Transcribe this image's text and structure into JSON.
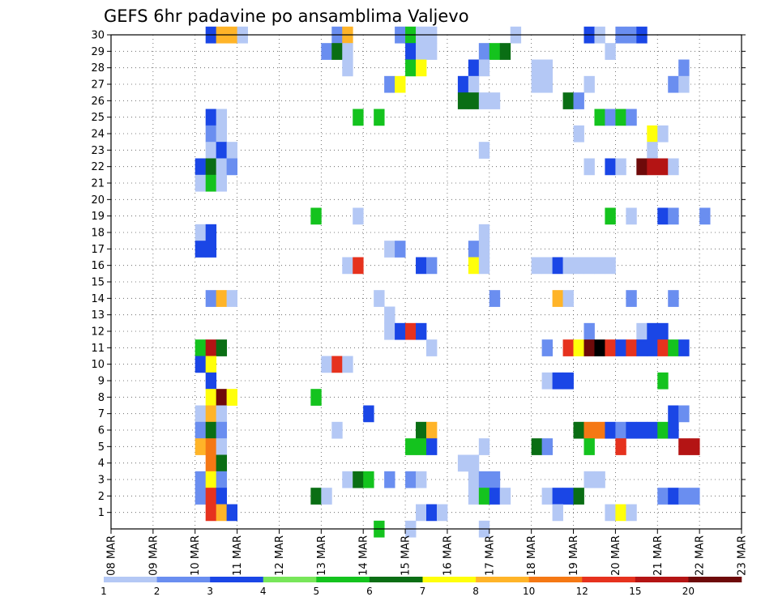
{
  "chart_data": {
    "type": "heatmap",
    "title": "GEFS 6hr padavine po ansamblima Valjevo",
    "xlabel": "",
    "ylabel": "",
    "grid": true,
    "ylim": [
      0,
      30
    ],
    "y_ticks": [
      "1",
      "2",
      "3",
      "4",
      "5",
      "6",
      "7",
      "8",
      "9",
      "10",
      "11",
      "12",
      "13",
      "14",
      "15",
      "16",
      "17",
      "18",
      "19",
      "20",
      "21",
      "22",
      "23",
      "24",
      "25",
      "26",
      "27",
      "28",
      "29",
      "30"
    ],
    "x_ticks": [
      "08 MAR",
      "09 MAR",
      "10 MAR",
      "11 MAR",
      "12 MAR",
      "13 MAR",
      "14 MAR",
      "15 MAR",
      "16 MAR",
      "17 MAR",
      "18 MAR",
      "19 MAR",
      "20 MAR",
      "21 MAR",
      "22 MAR",
      "23 MAR"
    ],
    "x_slots_per_day": 4,
    "x_slot_count": 60,
    "colorbar": {
      "labels": [
        "1",
        "2",
        "3",
        "4",
        "5",
        "6",
        "7",
        "8",
        "10",
        "12",
        "15",
        "20"
      ],
      "colors": [
        "#b4c8f5",
        "#6a8ef0",
        "#1a46e6",
        "#78e65a",
        "#14c31e",
        "#0a6e14",
        "#ffff0a",
        "#ffb428",
        "#f57814",
        "#e6321e",
        "#b41414",
        "#6e0a0a"
      ]
    },
    "cells": [
      [
        1,
        30,
        3
      ],
      [
        2,
        30,
        8
      ],
      [
        3,
        30,
        8
      ],
      [
        4,
        30,
        1
      ],
      [
        13,
        30,
        2
      ],
      [
        14,
        30,
        8
      ],
      [
        19,
        30,
        2
      ],
      [
        20,
        30,
        5
      ],
      [
        21,
        30,
        1
      ],
      [
        22,
        30,
        1
      ],
      [
        30,
        30,
        1
      ],
      [
        37,
        30,
        3
      ],
      [
        38,
        30,
        1
      ],
      [
        40,
        30,
        2
      ],
      [
        41,
        30,
        2
      ],
      [
        42,
        30,
        3
      ],
      [
        12,
        29,
        2
      ],
      [
        13,
        29,
        6
      ],
      [
        14,
        29,
        1
      ],
      [
        20,
        29,
        3
      ],
      [
        21,
        29,
        1
      ],
      [
        22,
        29,
        1
      ],
      [
        27,
        29,
        2
      ],
      [
        28,
        29,
        5
      ],
      [
        29,
        29,
        6
      ],
      [
        39,
        29,
        1
      ],
      [
        14,
        28,
        1
      ],
      [
        20,
        28,
        5
      ],
      [
        21,
        28,
        7
      ],
      [
        26,
        28,
        3
      ],
      [
        27,
        28,
        1
      ],
      [
        32,
        28,
        1
      ],
      [
        33,
        28,
        1
      ],
      [
        46,
        28,
        2
      ],
      [
        18,
        27,
        2
      ],
      [
        19,
        27,
        7
      ],
      [
        25,
        27,
        3
      ],
      [
        26,
        27,
        1
      ],
      [
        32,
        27,
        1
      ],
      [
        33,
        27,
        1
      ],
      [
        37,
        27,
        1
      ],
      [
        45,
        27,
        2
      ],
      [
        46,
        27,
        1
      ],
      [
        25,
        26,
        6
      ],
      [
        26,
        26,
        6
      ],
      [
        27,
        26,
        1
      ],
      [
        28,
        26,
        1
      ],
      [
        35,
        26,
        6
      ],
      [
        36,
        26,
        2
      ],
      [
        1,
        25,
        3
      ],
      [
        2,
        25,
        1
      ],
      [
        15,
        25,
        5
      ],
      [
        17,
        25,
        5
      ],
      [
        38,
        25,
        5
      ],
      [
        39,
        25,
        2
      ],
      [
        40,
        25,
        5
      ],
      [
        41,
        25,
        2
      ],
      [
        1,
        24,
        2
      ],
      [
        2,
        24,
        1
      ],
      [
        36,
        24,
        1
      ],
      [
        43,
        24,
        7
      ],
      [
        44,
        24,
        1
      ],
      [
        1,
        23,
        1
      ],
      [
        2,
        23,
        3
      ],
      [
        3,
        23,
        1
      ],
      [
        27,
        23,
        1
      ],
      [
        43,
        23,
        1
      ],
      [
        0,
        22,
        3
      ],
      [
        1,
        22,
        6
      ],
      [
        2,
        22,
        1
      ],
      [
        3,
        22,
        2
      ],
      [
        37,
        22,
        1
      ],
      [
        39,
        22,
        3
      ],
      [
        40,
        22,
        1
      ],
      [
        42,
        22,
        12
      ],
      [
        43,
        22,
        11
      ],
      [
        44,
        22,
        11
      ],
      [
        45,
        22,
        1
      ],
      [
        0,
        21,
        1
      ],
      [
        1,
        21,
        5
      ],
      [
        2,
        21,
        1
      ],
      [
        15,
        19,
        1
      ],
      [
        11,
        19,
        5
      ],
      [
        39,
        19,
        5
      ],
      [
        41,
        19,
        1
      ],
      [
        44,
        19,
        3
      ],
      [
        45,
        19,
        2
      ],
      [
        48,
        19,
        2
      ],
      [
        0,
        18,
        1
      ],
      [
        1,
        18,
        3
      ],
      [
        27,
        18,
        1
      ],
      [
        0,
        17,
        3
      ],
      [
        1,
        17,
        3
      ],
      [
        18,
        17,
        1
      ],
      [
        19,
        17,
        2
      ],
      [
        26,
        17,
        2
      ],
      [
        27,
        17,
        1
      ],
      [
        14,
        16,
        1
      ],
      [
        15,
        16,
        10
      ],
      [
        21,
        16,
        3
      ],
      [
        22,
        16,
        2
      ],
      [
        26,
        16,
        7
      ],
      [
        27,
        16,
        1
      ],
      [
        32,
        16,
        1
      ],
      [
        33,
        16,
        1
      ],
      [
        34,
        16,
        3
      ],
      [
        35,
        16,
        1
      ],
      [
        36,
        16,
        1
      ],
      [
        37,
        16,
        1
      ],
      [
        38,
        16,
        1
      ],
      [
        39,
        16,
        1
      ],
      [
        1,
        14,
        2
      ],
      [
        2,
        14,
        8
      ],
      [
        3,
        14,
        1
      ],
      [
        17,
        14,
        1
      ],
      [
        28,
        14,
        2
      ],
      [
        34,
        14,
        8
      ],
      [
        35,
        14,
        1
      ],
      [
        41,
        14,
        2
      ],
      [
        45,
        14,
        2
      ],
      [
        18,
        13,
        1
      ],
      [
        18,
        12,
        1
      ],
      [
        19,
        12,
        3
      ],
      [
        20,
        12,
        10
      ],
      [
        21,
        12,
        3
      ],
      [
        37,
        12,
        2
      ],
      [
        42,
        12,
        1
      ],
      [
        43,
        12,
        3
      ],
      [
        44,
        12,
        3
      ],
      [
        0,
        11,
        5
      ],
      [
        1,
        11,
        11
      ],
      [
        2,
        11,
        6
      ],
      [
        22,
        11,
        1
      ],
      [
        33,
        11,
        2
      ],
      [
        35,
        11,
        10
      ],
      [
        36,
        11,
        7
      ],
      [
        37,
        11,
        12
      ],
      [
        38,
        11,
        13
      ],
      [
        39,
        11,
        10
      ],
      [
        40,
        11,
        3
      ],
      [
        41,
        11,
        10
      ],
      [
        42,
        11,
        3
      ],
      [
        43,
        11,
        3
      ],
      [
        44,
        11,
        10
      ],
      [
        45,
        11,
        5
      ],
      [
        46,
        11,
        3
      ],
      [
        0,
        10,
        3
      ],
      [
        1,
        10,
        7
      ],
      [
        12,
        10,
        1
      ],
      [
        13,
        10,
        10
      ],
      [
        14,
        10,
        1
      ],
      [
        1,
        9,
        3
      ],
      [
        33,
        9,
        1
      ],
      [
        34,
        9,
        3
      ],
      [
        35,
        9,
        3
      ],
      [
        44,
        9,
        5
      ],
      [
        1,
        8,
        7
      ],
      [
        2,
        8,
        12
      ],
      [
        3,
        8,
        7
      ],
      [
        11,
        8,
        5
      ],
      [
        0,
        7,
        1
      ],
      [
        1,
        7,
        8
      ],
      [
        2,
        7,
        1
      ],
      [
        16,
        7,
        3
      ],
      [
        45,
        7,
        3
      ],
      [
        46,
        7,
        2
      ],
      [
        0,
        6,
        2
      ],
      [
        1,
        6,
        6
      ],
      [
        2,
        6,
        2
      ],
      [
        13,
        6,
        1
      ],
      [
        21,
        6,
        6
      ],
      [
        22,
        6,
        8
      ],
      [
        36,
        6,
        6
      ],
      [
        37,
        6,
        9
      ],
      [
        38,
        6,
        9
      ],
      [
        39,
        6,
        3
      ],
      [
        40,
        6,
        2
      ],
      [
        41,
        6,
        3
      ],
      [
        42,
        6,
        3
      ],
      [
        43,
        6,
        3
      ],
      [
        44,
        6,
        5
      ],
      [
        45,
        6,
        3
      ],
      [
        0,
        5,
        8
      ],
      [
        1,
        5,
        9
      ],
      [
        2,
        5,
        1
      ],
      [
        20,
        5,
        5
      ],
      [
        21,
        5,
        5
      ],
      [
        22,
        5,
        3
      ],
      [
        27,
        5,
        1
      ],
      [
        32,
        5,
        6
      ],
      [
        33,
        5,
        2
      ],
      [
        37,
        5,
        5
      ],
      [
        40,
        5,
        10
      ],
      [
        46,
        5,
        11
      ],
      [
        47,
        5,
        11
      ],
      [
        1,
        4,
        9
      ],
      [
        2,
        4,
        6
      ],
      [
        25,
        4,
        1
      ],
      [
        26,
        4,
        1
      ],
      [
        0,
        3,
        2
      ],
      [
        1,
        3,
        7
      ],
      [
        2,
        3,
        2
      ],
      [
        14,
        3,
        1
      ],
      [
        15,
        3,
        6
      ],
      [
        16,
        3,
        5
      ],
      [
        18,
        3,
        2
      ],
      [
        20,
        3,
        2
      ],
      [
        21,
        3,
        1
      ],
      [
        26,
        3,
        1
      ],
      [
        27,
        3,
        2
      ],
      [
        28,
        3,
        2
      ],
      [
        37,
        3,
        1
      ],
      [
        38,
        3,
        1
      ],
      [
        0,
        2,
        2
      ],
      [
        1,
        2,
        10
      ],
      [
        2,
        2,
        3
      ],
      [
        11,
        2,
        6
      ],
      [
        12,
        2,
        1
      ],
      [
        26,
        2,
        1
      ],
      [
        27,
        2,
        5
      ],
      [
        28,
        2,
        3
      ],
      [
        29,
        2,
        1
      ],
      [
        33,
        2,
        1
      ],
      [
        34,
        2,
        3
      ],
      [
        35,
        2,
        3
      ],
      [
        36,
        2,
        6
      ],
      [
        44,
        2,
        2
      ],
      [
        45,
        2,
        3
      ],
      [
        46,
        2,
        2
      ],
      [
        47,
        2,
        2
      ],
      [
        1,
        1,
        10
      ],
      [
        2,
        1,
        8
      ],
      [
        3,
        1,
        3
      ],
      [
        21,
        1,
        1
      ],
      [
        22,
        1,
        3
      ],
      [
        23,
        1,
        1
      ],
      [
        34,
        1,
        1
      ],
      [
        39,
        1,
        1
      ],
      [
        40,
        1,
        7
      ],
      [
        41,
        1,
        1
      ],
      [
        17,
        0,
        5
      ],
      [
        20,
        0,
        1
      ],
      [
        27,
        0,
        1
      ]
    ]
  }
}
